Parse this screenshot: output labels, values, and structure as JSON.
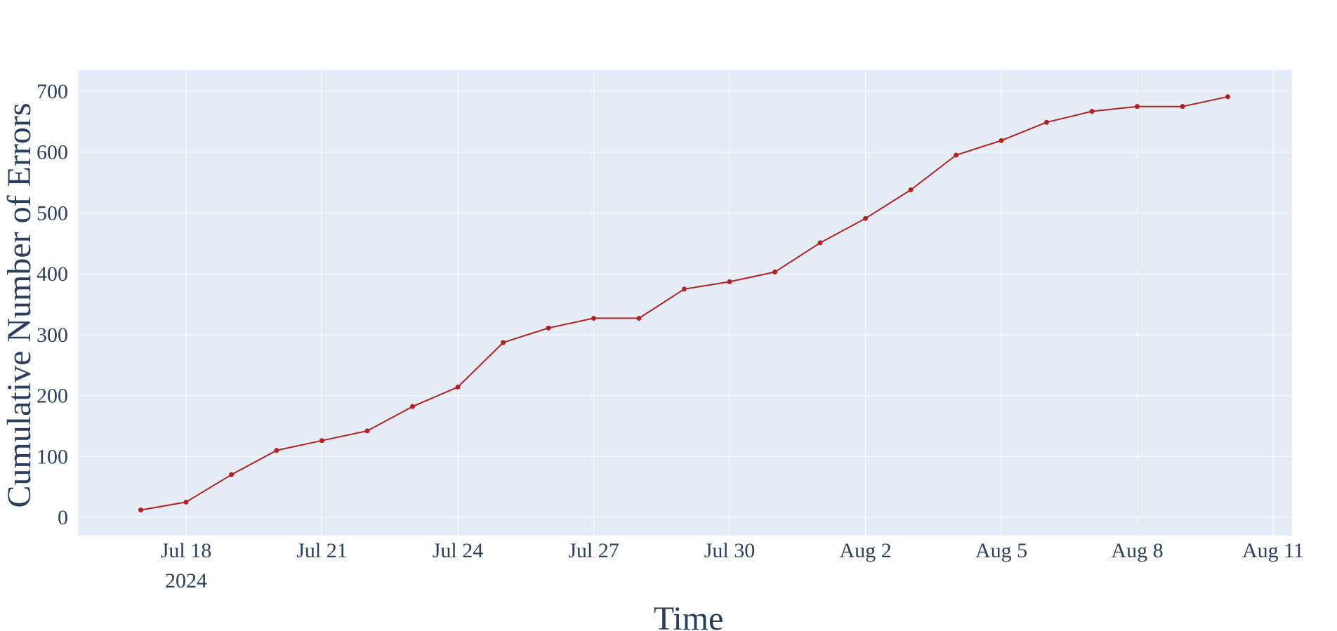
{
  "chart_data": {
    "type": "line",
    "title": "",
    "xlabel": "Time",
    "ylabel": "Cumulative Number of Errors",
    "x_type": "date",
    "x": [
      "2024-07-17",
      "2024-07-18",
      "2024-07-19",
      "2024-07-20",
      "2024-07-21",
      "2024-07-22",
      "2024-07-23",
      "2024-07-24",
      "2024-07-25",
      "2024-07-26",
      "2024-07-27",
      "2024-07-28",
      "2024-07-29",
      "2024-07-30",
      "2024-07-31",
      "2024-08-01",
      "2024-08-02",
      "2024-08-03",
      "2024-08-04",
      "2024-08-05",
      "2024-08-06",
      "2024-08-07",
      "2024-08-08",
      "2024-08-09",
      "2024-08-10"
    ],
    "series": [
      {
        "values": [
          12,
          25,
          70,
          110,
          126,
          142,
          182,
          214,
          287,
          311,
          327,
          327,
          375,
          387,
          403,
          451,
          491,
          538,
          595,
          619,
          649,
          667,
          675,
          675,
          691
        ],
        "color": "#b22222"
      }
    ],
    "xlim": [
      "2024-07-16",
      "2024-08-11"
    ],
    "ylim": [
      -30,
      735
    ],
    "x_ticks": [
      {
        "date": "2024-07-18",
        "label": "Jul 18",
        "sublabel": "2024"
      },
      {
        "date": "2024-07-21",
        "label": "Jul 21"
      },
      {
        "date": "2024-07-24",
        "label": "Jul 24"
      },
      {
        "date": "2024-07-27",
        "label": "Jul 27"
      },
      {
        "date": "2024-07-30",
        "label": "Jul 30"
      },
      {
        "date": "2024-08-02",
        "label": "Aug 2"
      },
      {
        "date": "2024-08-05",
        "label": "Aug 5"
      },
      {
        "date": "2024-08-08",
        "label": "Aug 8"
      },
      {
        "date": "2024-08-11",
        "label": "Aug 11"
      }
    ],
    "y_ticks": [
      0,
      100,
      200,
      300,
      400,
      500,
      600,
      700
    ],
    "grid": true,
    "legend": "none",
    "colors": {
      "plot_background": "#e5ecf6",
      "grid": "#ffffff",
      "text": "#2a3f5f",
      "line": "#b22222"
    }
  }
}
